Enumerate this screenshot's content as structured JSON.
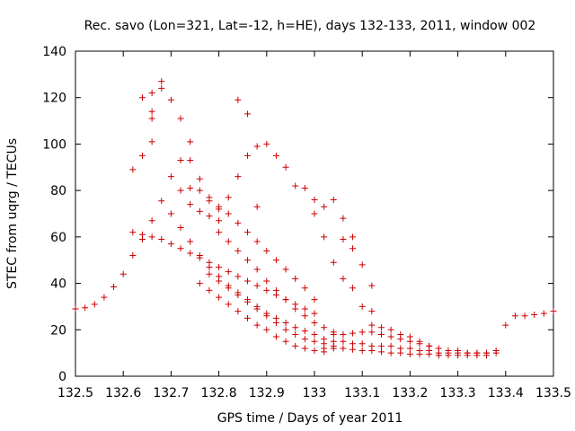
{
  "chart_data": {
    "type": "scatter",
    "title": "Rec. savo (Lon=321, Lat=-12, h=HE), days 132-133, 2011, window 002",
    "xlabel": "GPS time / Days of year 2011",
    "ylabel": "STEC from uqrg / TECUs",
    "xlim": [
      132.5,
      133.5
    ],
    "ylim": [
      0,
      140
    ],
    "x_ticks": [
      "132.5",
      "132.6",
      "132.7",
      "132.8",
      "132.9",
      "133",
      "133.1",
      "133.2",
      "133.3",
      "133.4",
      "133.5"
    ],
    "y_ticks": [
      "0",
      "20",
      "40",
      "60",
      "80",
      "100",
      "120",
      "140"
    ],
    "grid": false,
    "marker": "+",
    "color": "#cc0000",
    "points": [
      [
        132.5,
        29
      ],
      [
        132.52,
        29.5
      ],
      [
        132.54,
        31
      ],
      [
        132.56,
        34
      ],
      [
        132.58,
        38.5
      ],
      [
        132.6,
        44
      ],
      [
        132.62,
        52
      ],
      [
        132.64,
        59
      ],
      [
        132.66,
        67
      ],
      [
        132.68,
        75.5
      ],
      [
        132.7,
        86
      ],
      [
        132.72,
        93
      ],
      [
        132.74,
        93
      ],
      [
        132.64,
        120
      ],
      [
        132.66,
        122
      ],
      [
        132.68,
        124
      ],
      [
        132.7,
        119
      ],
      [
        132.72,
        111
      ],
      [
        132.74,
        101
      ],
      [
        132.76,
        85
      ],
      [
        132.78,
        75.5
      ],
      [
        132.8,
        67
      ],
      [
        132.62,
        89
      ],
      [
        132.64,
        95
      ],
      [
        132.66,
        101
      ],
      [
        132.66,
        111
      ],
      [
        132.66,
        114
      ],
      [
        132.68,
        127
      ],
      [
        132.62,
        62
      ],
      [
        132.64,
        61
      ],
      [
        132.66,
        60
      ],
      [
        132.68,
        59
      ],
      [
        132.7,
        57
      ],
      [
        132.72,
        55
      ],
      [
        132.74,
        53
      ],
      [
        132.76,
        51
      ],
      [
        132.78,
        49
      ],
      [
        132.8,
        47
      ],
      [
        132.82,
        45
      ],
      [
        132.84,
        43
      ],
      [
        132.86,
        41
      ],
      [
        132.88,
        39
      ],
      [
        132.9,
        37
      ],
      [
        132.92,
        35
      ],
      [
        132.94,
        33
      ],
      [
        132.96,
        31
      ],
      [
        132.98,
        29
      ],
      [
        133.0,
        27
      ],
      [
        132.72,
        80
      ],
      [
        132.74,
        81
      ],
      [
        132.76,
        80
      ],
      [
        132.78,
        77
      ],
      [
        132.8,
        73
      ],
      [
        132.82,
        70
      ],
      [
        132.84,
        66
      ],
      [
        132.86,
        62
      ],
      [
        132.88,
        58
      ],
      [
        132.9,
        54
      ],
      [
        132.92,
        50
      ],
      [
        132.94,
        46
      ],
      [
        132.96,
        42
      ],
      [
        132.98,
        38
      ],
      [
        133.0,
        33
      ],
      [
        132.7,
        70
      ],
      [
        132.72,
        64
      ],
      [
        132.74,
        58
      ],
      [
        132.76,
        52
      ],
      [
        132.78,
        47
      ],
      [
        132.8,
        43
      ],
      [
        132.82,
        39
      ],
      [
        132.84,
        36
      ],
      [
        132.86,
        33
      ],
      [
        132.88,
        30
      ],
      [
        132.9,
        27
      ],
      [
        132.92,
        25
      ],
      [
        132.94,
        23
      ],
      [
        132.96,
        21
      ],
      [
        132.98,
        19.5
      ],
      [
        133.0,
        18
      ],
      [
        132.74,
        74
      ],
      [
        132.76,
        71
      ],
      [
        132.78,
        69
      ],
      [
        132.8,
        72
      ],
      [
        132.82,
        77
      ],
      [
        132.84,
        86
      ],
      [
        132.86,
        95
      ],
      [
        132.88,
        99
      ],
      [
        132.9,
        100
      ],
      [
        132.92,
        95
      ],
      [
        132.94,
        90
      ],
      [
        132.96,
        82
      ],
      [
        132.98,
        81
      ],
      [
        133.0,
        76
      ],
      [
        133.02,
        73
      ],
      [
        133.04,
        76
      ],
      [
        133.06,
        68
      ],
      [
        133.08,
        60
      ],
      [
        132.84,
        119
      ],
      [
        132.86,
        113
      ],
      [
        132.88,
        73
      ],
      [
        132.8,
        62
      ],
      [
        132.82,
        58
      ],
      [
        132.84,
        54
      ],
      [
        132.86,
        50
      ],
      [
        132.88,
        46
      ],
      [
        132.9,
        41
      ],
      [
        132.92,
        37
      ],
      [
        132.94,
        33
      ],
      [
        132.96,
        29
      ],
      [
        132.98,
        26
      ],
      [
        133.0,
        23
      ],
      [
        133.02,
        21
      ],
      [
        133.04,
        19
      ],
      [
        132.78,
        44
      ],
      [
        132.8,
        41
      ],
      [
        132.82,
        38
      ],
      [
        132.84,
        35
      ],
      [
        132.86,
        32
      ],
      [
        132.88,
        29
      ],
      [
        132.9,
        26
      ],
      [
        132.92,
        23
      ],
      [
        132.94,
        20
      ],
      [
        132.96,
        18
      ],
      [
        132.98,
        16
      ],
      [
        133.0,
        15
      ],
      [
        133.02,
        14
      ],
      [
        133.04,
        13
      ],
      [
        132.76,
        40
      ],
      [
        132.78,
        37
      ],
      [
        132.8,
        34
      ],
      [
        132.82,
        31
      ],
      [
        132.84,
        28
      ],
      [
        132.86,
        25
      ],
      [
        132.88,
        22
      ],
      [
        132.9,
        20
      ],
      [
        132.92,
        17
      ],
      [
        132.94,
        15
      ],
      [
        132.96,
        13
      ],
      [
        132.98,
        12
      ],
      [
        133.0,
        11
      ],
      [
        133.02,
        10.5
      ],
      [
        133.0,
        70
      ],
      [
        133.02,
        60
      ],
      [
        133.04,
        49
      ],
      [
        133.06,
        42
      ],
      [
        133.08,
        38
      ],
      [
        133.1,
        30
      ],
      [
        133.12,
        22
      ],
      [
        133.14,
        21
      ],
      [
        133.16,
        20
      ],
      [
        133.18,
        18
      ],
      [
        133.2,
        17
      ],
      [
        133.22,
        15
      ],
      [
        133.24,
        13
      ],
      [
        133.06,
        59
      ],
      [
        133.08,
        55
      ],
      [
        133.1,
        48
      ],
      [
        133.12,
        39
      ],
      [
        133.12,
        28
      ],
      [
        133.02,
        16
      ],
      [
        133.04,
        15
      ],
      [
        133.06,
        15
      ],
      [
        133.08,
        14
      ],
      [
        133.1,
        14
      ],
      [
        133.12,
        13
      ],
      [
        133.14,
        13
      ],
      [
        133.16,
        13
      ],
      [
        133.18,
        12
      ],
      [
        133.2,
        12
      ],
      [
        133.22,
        11
      ],
      [
        133.24,
        11
      ],
      [
        133.26,
        10
      ],
      [
        133.28,
        10
      ],
      [
        133.3,
        10
      ],
      [
        133.32,
        10
      ],
      [
        133.34,
        10
      ],
      [
        133.36,
        10
      ],
      [
        133.38,
        10
      ],
      [
        133.04,
        18
      ],
      [
        133.06,
        18
      ],
      [
        133.08,
        18.5
      ],
      [
        133.1,
        19
      ],
      [
        133.12,
        19
      ],
      [
        133.14,
        18
      ],
      [
        133.16,
        17
      ],
      [
        133.18,
        16
      ],
      [
        133.2,
        15
      ],
      [
        133.22,
        14
      ],
      [
        133.24,
        13
      ],
      [
        133.26,
        12
      ],
      [
        133.02,
        12
      ],
      [
        133.04,
        12
      ],
      [
        133.06,
        12
      ],
      [
        133.08,
        11.5
      ],
      [
        133.1,
        11
      ],
      [
        133.12,
        11
      ],
      [
        133.14,
        10.5
      ],
      [
        133.16,
        10
      ],
      [
        133.18,
        10
      ],
      [
        133.2,
        9.5
      ],
      [
        133.22,
        9.5
      ],
      [
        133.24,
        9.5
      ],
      [
        133.26,
        9
      ],
      [
        133.28,
        9
      ],
      [
        133.3,
        9
      ],
      [
        133.32,
        9
      ],
      [
        133.34,
        9
      ],
      [
        133.36,
        9
      ],
      [
        133.28,
        11
      ],
      [
        133.3,
        11
      ],
      [
        133.32,
        10
      ],
      [
        133.34,
        10
      ],
      [
        133.36,
        10
      ],
      [
        133.38,
        11
      ],
      [
        133.4,
        22
      ],
      [
        133.42,
        26
      ],
      [
        133.44,
        26
      ],
      [
        133.46,
        26.5
      ],
      [
        133.48,
        27
      ],
      [
        133.5,
        28
      ]
    ]
  }
}
